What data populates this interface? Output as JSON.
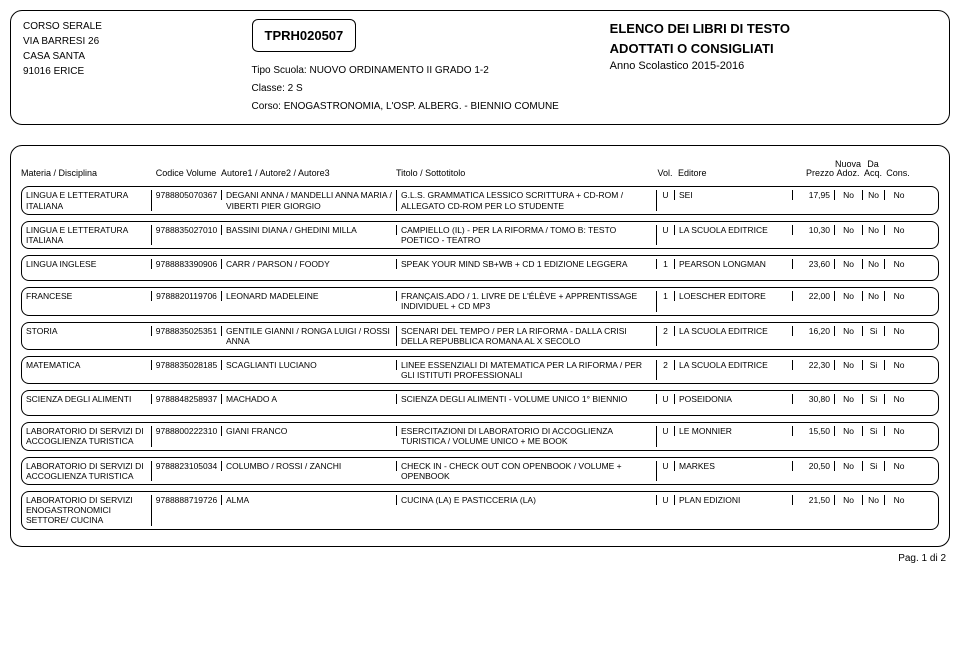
{
  "header": {
    "school_line1": "CORSO SERALE",
    "school_line2": "VIA BARRESI 26",
    "school_line3": "CASA SANTA",
    "school_line4": "91016  ERICE",
    "code": "TPRH020507",
    "tipo": "Tipo Scuola:  NUOVO ORDINAMENTO II GRADO 1-2",
    "classe": "Classe:  2 S",
    "corso": "Corso:  ENOGASTRONOMIA, L'OSP. ALBERG. - BIENNIO COMUNE",
    "title1": "ELENCO DEI LIBRI DI TESTO",
    "title2": "ADOTTATI O CONSIGLIATI",
    "anno": "Anno Scolastico 2015-2016"
  },
  "columns": {
    "materia": "Materia / Disciplina",
    "codice": "Codice Volume",
    "autori": "Autore1 / Autore2 / Autore3",
    "titolo": "Titolo / Sottotitolo",
    "vol": "Vol.",
    "editore": "Editore",
    "prezzo": "Prezzo",
    "nuova1": "Nuova",
    "nuova2": "Adoz.",
    "da1": "Da",
    "da2": "Acq.",
    "cons": "Cons."
  },
  "rows": [
    {
      "materia": "LINGUA E LETTERATURA ITALIANA",
      "codice": "9788805070367",
      "autori": "DEGANI ANNA / MANDELLI ANNA MARIA / VIBERTI PIER GIORGIO",
      "titolo": "G.L.S. GRAMMATICA LESSICO SCRITTURA + CD-ROM / ALLEGATO CD-ROM PER LO STUDENTE",
      "vol": "U",
      "editore": "SEI",
      "prezzo": "17,95",
      "nuova": "No",
      "da": "No",
      "cons": "No"
    },
    {
      "materia": "LINGUA E LETTERATURA ITALIANA",
      "codice": "9788835027010",
      "autori": "BASSINI DIANA / GHEDINI MILLA",
      "titolo": "CAMPIELLO (IL) - PER LA RIFORMA / TOMO B: TESTO POETICO - TEATRO",
      "vol": "U",
      "editore": "LA SCUOLA EDITRICE",
      "prezzo": "10,30",
      "nuova": "No",
      "da": "No",
      "cons": "No"
    },
    {
      "materia": "LINGUA INGLESE",
      "codice": "9788883390906",
      "autori": "CARR / PARSON / FOODY",
      "titolo": "SPEAK YOUR MIND SB+WB + CD 1 EDIZIONE LEGGERA",
      "vol": "1",
      "editore": "PEARSON LONGMAN",
      "prezzo": "23,60",
      "nuova": "No",
      "da": "No",
      "cons": "No"
    },
    {
      "materia": "FRANCESE",
      "codice": "9788820119706",
      "autori": "LEONARD MADELEINE",
      "titolo": "FRANÇAIS.ADO / 1. LIVRE DE L'ÉLÈVE + APPRENTISSAGE INDIVIDUEL + CD MP3",
      "vol": "1",
      "editore": "LOESCHER EDITORE",
      "prezzo": "22,00",
      "nuova": "No",
      "da": "No",
      "cons": "No"
    },
    {
      "materia": "STORIA",
      "codice": "9788835025351",
      "autori": "GENTILE GIANNI / RONGA LUIGI / ROSSI ANNA",
      "titolo": "SCENARI DEL TEMPO / PER LA RIFORMA - DALLA CRISI DELLA REPUBBLICA ROMANA AL X SECOLO",
      "vol": "2",
      "editore": "LA SCUOLA EDITRICE",
      "prezzo": "16,20",
      "nuova": "No",
      "da": "Si",
      "cons": "No"
    },
    {
      "materia": "MATEMATICA",
      "codice": "9788835028185",
      "autori": "SCAGLIANTI LUCIANO",
      "titolo": "LINEE ESSENZIALI DI MATEMATICA PER LA RIFORMA / PER GLI ISTITUTI PROFESSIONALI",
      "vol": "2",
      "editore": "LA SCUOLA EDITRICE",
      "prezzo": "22,30",
      "nuova": "No",
      "da": "Si",
      "cons": "No"
    },
    {
      "materia": "SCIENZA DEGLI ALIMENTI",
      "codice": "9788848258937",
      "autori": "MACHADO A",
      "titolo": "SCIENZA DEGLI ALIMENTI - VOLUME UNICO 1° BIENNIO",
      "vol": "U",
      "editore": "POSEIDONIA",
      "prezzo": "30,80",
      "nuova": "No",
      "da": "Si",
      "cons": "No"
    },
    {
      "materia": "LABORATORIO DI SERVIZI DI ACCOGLIENZA TURISTICA",
      "codice": "9788800222310",
      "autori": "GIANI FRANCO",
      "titolo": "ESERCITAZIONI DI LABORATORIO DI ACCOGLIENZA TURISTICA / VOLUME UNICO + ME BOOK",
      "vol": "U",
      "editore": "LE MONNIER",
      "prezzo": "15,50",
      "nuova": "No",
      "da": "Si",
      "cons": "No"
    },
    {
      "materia": "LABORATORIO DI SERVIZI DI ACCOGLIENZA TURISTICA",
      "codice": "9788823105034",
      "autori": "COLUMBO / ROSSI / ZANCHI",
      "titolo": "CHECK IN - CHECK OUT CON OPENBOOK / VOLUME + OPENBOOK",
      "vol": "U",
      "editore": "MARKES",
      "prezzo": "20,50",
      "nuova": "No",
      "da": "Si",
      "cons": "No"
    },
    {
      "materia": "LABORATORIO DI SERVIZI ENOGASTRONOMICI SETTORE/ CUCINA",
      "codice": "9788888719726",
      "autori": "ALMA",
      "titolo": "CUCINA (LA) E PASTICCERIA (LA)",
      "vol": "U",
      "editore": "PLAN EDIZIONI",
      "prezzo": "21,50",
      "nuova": "No",
      "da": "No",
      "cons": "No"
    }
  ],
  "footer": "Pag. 1 di 2"
}
